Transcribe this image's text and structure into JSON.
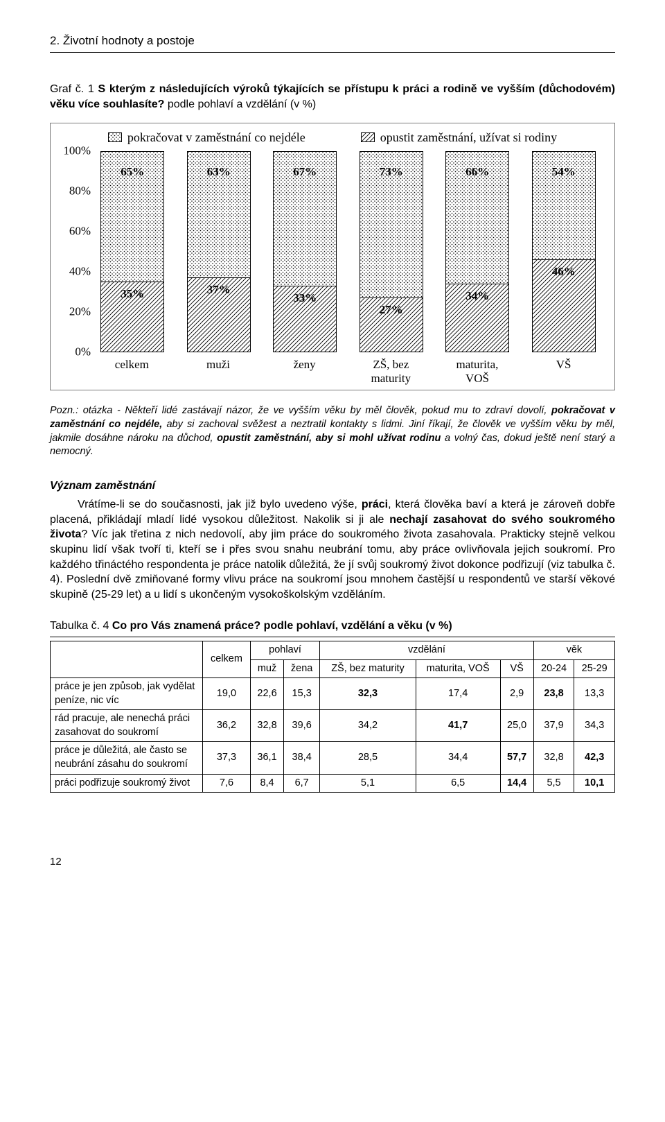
{
  "section_title": "2. Životní hodnoty a postoje",
  "graf": {
    "prefix": "Graf č. 1 ",
    "title_bold": "S kterým z následujících výroků týkajících se přístupu k práci a rodině ve vyšším (důchodovém) věku více souhlasíte?",
    "title_tail": " podle pohlaví a vzdělání (v %)"
  },
  "chart": {
    "type": "stacked-bar",
    "series": [
      {
        "name": "pokračovat v zaměstnání co nejdéle",
        "pattern": "dots"
      },
      {
        "name": "opustit zaměstnání, užívat si rodiny",
        "pattern": "diag"
      }
    ],
    "yticks": [
      "100%",
      "80%",
      "60%",
      "40%",
      "20%",
      "0%"
    ],
    "ylim_top": 100,
    "categories": [
      "celkem",
      "muži",
      "ženy",
      "ZŠ, bez maturity",
      "maturita, VOŠ",
      "VŠ"
    ],
    "top_values": [
      "65%",
      "63%",
      "67%",
      "73%",
      "66%",
      "54%"
    ],
    "bottom_values": [
      "35%",
      "37%",
      "33%",
      "27%",
      "34%",
      "46%"
    ],
    "bottom_num": [
      35,
      37,
      33,
      27,
      34,
      46
    ],
    "border_color": "#7a7a7a",
    "bar_border_color": "#000000",
    "text_fontsize": 17,
    "yticks_fontsize": 17,
    "legend_fontsize": 18,
    "font_family": "Times New Roman"
  },
  "pozn": "Pozn.: otázka - Někteří lidé zastávají názor, že ve vyšším věku by měl člověk, pokud mu to zdraví dovolí, pokračovat v zaměstnání co nejdéle, aby si zachoval svěžest a neztratil kontakty s lidmi. Jiní říkají, že člověk ve vyšším věku by měl, jakmile dosáhne nároku na důchod, opustit zaměstnání, aby si mohl užívat rodinu a volný čas, dokud ještě není starý a nemocný.",
  "pozn_bold1": "pokračovat v zaměstnání co nejdéle,",
  "pozn_bold2": "opustit zaměstnání, aby si mohl užívat rodinu",
  "subheading": "Význam zaměstnání",
  "paragraph": "Vrátíme-li se do současnosti, jak již bylo uvedeno výše, práci, která člověka baví a která je zároveň dobře placená, přikládají mladí lidé vysokou důležitost. Nakolik si ji ale nechají zasahovat do svého soukromého života? Víc jak třetina z nich nedovolí, aby jim práce do soukromého života zasahovala. Prakticky stejně velkou skupinu lidí však tvoří ti, kteří se i přes svou snahu neubrání tomu, aby práce ovlivňovala jejich soukromí. Pro každého třináctého respondenta je práce natolik důležitá, že jí svůj soukromý život dokonce podřizují (viz tabulka č. 4). Poslední dvě zmiňované formy vlivu práce na soukromí jsou mnohem častější u respondentů ve starší věkové skupině (25-29 let) a u lidí s ukončeným vysokoškolským vzděláním.",
  "para_bold1": "práci",
  "para_bold2": "nechají zasahovat do svého soukromého života",
  "table": {
    "prefix": "Tabulka č. 4 ",
    "title_bold": "Co pro Vás znamená práce?",
    "title_tail": " podle pohlaví, vzdělání a věku (v %)",
    "group_headers": [
      "pohlaví",
      "vzdělání",
      "věk"
    ],
    "col_celkem": "celkem",
    "sub_headers": [
      "muž",
      "žena",
      "ZŠ, bez maturity",
      "maturita, VOŠ",
      "VŠ",
      "20-24",
      "25-29"
    ],
    "rows": [
      {
        "label": "práce je jen způsob, jak vydělat peníze, nic víc",
        "cells": [
          "19,0",
          "22,6",
          "15,3",
          "32,3",
          "17,4",
          "2,9",
          "23,8",
          "13,3"
        ],
        "bold_idx": [
          3,
          6
        ]
      },
      {
        "label": "rád pracuje, ale nenechá práci zasahovat do soukromí",
        "cells": [
          "36,2",
          "32,8",
          "39,6",
          "34,2",
          "41,7",
          "25,0",
          "37,9",
          "34,3"
        ],
        "bold_idx": [
          4
        ]
      },
      {
        "label": "práce je důležitá, ale často se neubrání zásahu do soukromí",
        "cells": [
          "37,3",
          "36,1",
          "38,4",
          "28,5",
          "34,4",
          "57,7",
          "32,8",
          "42,3"
        ],
        "bold_idx": [
          5,
          7
        ]
      },
      {
        "label": "práci podřizuje soukromý život",
        "cells": [
          "7,6",
          "8,4",
          "6,7",
          "5,1",
          "6,5",
          "14,4",
          "5,5",
          "10,1"
        ],
        "bold_idx": [
          5,
          7
        ]
      }
    ]
  },
  "page_number": "12"
}
